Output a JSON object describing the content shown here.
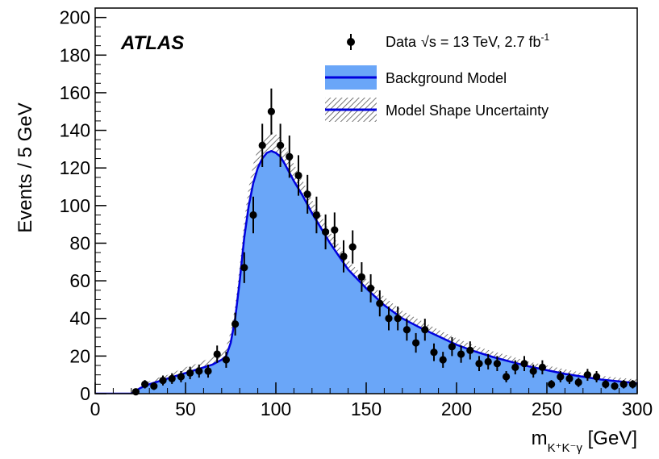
{
  "chart_data": {
    "type": "area",
    "experiment_label": "ATLAS",
    "xlabel_main": "m",
    "xlabel_sub": "K⁺K⁻γ",
    "xlabel_unit": " [GeV]",
    "ylabel": "Events / 5 GeV",
    "xlim": [
      0,
      300
    ],
    "ylim": [
      0,
      205
    ],
    "xticks": [
      0,
      50,
      100,
      150,
      200,
      250,
      300
    ],
    "yticks": [
      0,
      20,
      40,
      60,
      80,
      100,
      120,
      140,
      160,
      180,
      200
    ],
    "legend_position": "top-right",
    "legend": {
      "data_prefix": "Data",
      "data_sqrt": "√s",
      "data_equals": " =  13 TeV, 2.7 fb",
      "data_exp": "-1",
      "background": "Background Model",
      "uncertainty": "Model Shape Uncertainty"
    },
    "colors": {
      "fill": "#6aa6f8",
      "line": "#0000dd",
      "points": "#000000",
      "hatch": "#555555"
    },
    "background_model": {
      "x": [
        0,
        20,
        25,
        30,
        35,
        40,
        45,
        50,
        55,
        60,
        65,
        70,
        72.5,
        75,
        77.5,
        80,
        82.5,
        85,
        87.5,
        90,
        92.5,
        95,
        97.5,
        100,
        102.5,
        105,
        110,
        115,
        120,
        125,
        130,
        135,
        140,
        145,
        150,
        160,
        170,
        180,
        190,
        200,
        210,
        220,
        230,
        240,
        250,
        260,
        270,
        280,
        290,
        300
      ],
      "y": [
        0,
        0,
        3,
        5,
        6.5,
        8,
        9.5,
        11,
        12.5,
        14,
        15.5,
        18,
        20,
        27,
        40,
        60,
        83,
        100,
        112,
        120,
        125,
        128,
        129,
        128,
        126,
        122,
        113,
        105,
        96,
        88,
        80,
        73,
        66,
        61,
        56,
        47,
        40,
        35,
        30.5,
        26,
        22.5,
        19.5,
        17,
        14.5,
        12.5,
        10.5,
        9,
        7.5,
        6.5,
        5.5
      ],
      "band_halfwidth": [
        0,
        0,
        1,
        1.5,
        2,
        2,
        2.5,
        3,
        3,
        3.5,
        4,
        4,
        5,
        6,
        7,
        8,
        9,
        10,
        10,
        10,
        10,
        10,
        10,
        10,
        10,
        10,
        9,
        8,
        7,
        7,
        6,
        6,
        5,
        5,
        5,
        4.5,
        4,
        4,
        3.5,
        3.5,
        3,
        3,
        3,
        2.5,
        2.5,
        2.5,
        2,
        2,
        2,
        2
      ]
    },
    "data_points": {
      "x": [
        22.5,
        27.5,
        32.5,
        37.5,
        42.5,
        47.5,
        52.5,
        57.5,
        62.5,
        67.5,
        72.5,
        77.5,
        82.5,
        87.5,
        92.5,
        97.5,
        102.5,
        107.5,
        112.5,
        117.5,
        122.5,
        127.5,
        132.5,
        137.5,
        142.5,
        147.5,
        152.5,
        157.5,
        162.5,
        167.5,
        172.5,
        177.5,
        182.5,
        187.5,
        192.5,
        197.5,
        202.5,
        207.5,
        212.5,
        217.5,
        222.5,
        227.5,
        232.5,
        237.5,
        242.5,
        247.5,
        252.5,
        257.5,
        262.5,
        267.5,
        272.5,
        277.5,
        282.5,
        287.5,
        292.5,
        297.5
      ],
      "y": [
        1,
        5,
        4,
        7,
        8,
        9,
        11,
        12,
        12,
        21,
        18,
        37,
        67,
        95,
        132,
        150,
        132,
        126,
        116,
        106,
        95,
        86,
        87,
        73,
        78,
        62,
        56,
        48,
        40,
        40,
        34,
        27,
        34,
        22,
        18,
        25,
        21,
        23,
        16,
        17,
        16,
        9,
        14,
        16,
        12,
        14,
        5,
        9,
        8,
        6,
        10,
        9,
        5,
        4,
        5,
        5
      ]
    }
  }
}
